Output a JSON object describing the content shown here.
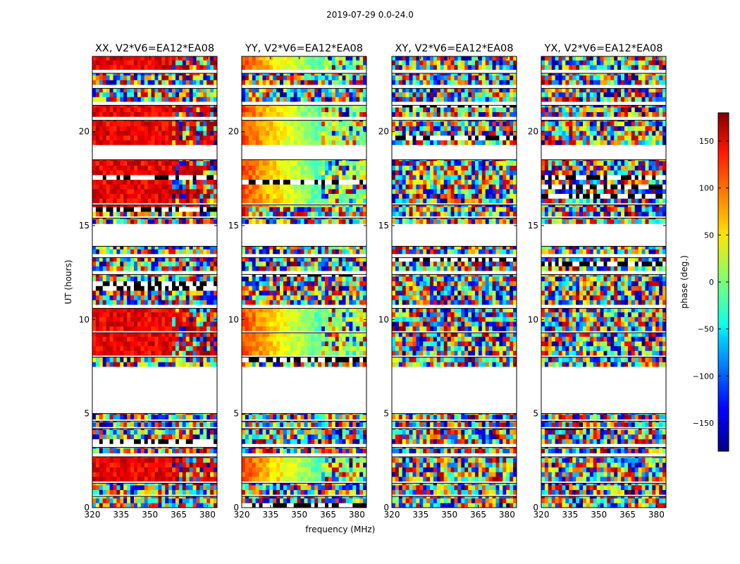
{
  "figure": {
    "suptitle": "2019-07-29 0.0-24.0"
  },
  "colors": {
    "colormap": "jet",
    "blank": "#ffffff",
    "flag": "#000000"
  },
  "chart_data": [
    {
      "type": "heatmap",
      "title": "XX, V2*V6=EA12*EA08",
      "xlabel": "",
      "ylabel": "UT (hours)",
      "xlim": [
        320,
        385
      ],
      "ylim": [
        0,
        24
      ],
      "xticks": [
        320,
        335,
        350,
        365,
        380
      ],
      "yticks": [
        0,
        5,
        10,
        15,
        20
      ],
      "phase_pattern": "coherent-warm",
      "base_phase_deg": 140,
      "coherent_until_mhz": 361
    },
    {
      "type": "heatmap",
      "title": "YY, V2*V6=EA12*EA08",
      "xlabel": "frequency (MHz)",
      "ylabel": "",
      "xlim": [
        320,
        385
      ],
      "ylim": [
        0,
        24
      ],
      "xticks": [
        320,
        335,
        350,
        365,
        380
      ],
      "yticks": [
        0,
        5,
        10,
        15,
        20
      ],
      "phase_pattern": "coherent-gradient",
      "base_phase_deg": 110,
      "end_phase_deg": -20,
      "coherent_until_mhz": 361
    },
    {
      "type": "heatmap",
      "title": "XY, V2*V6=EA12*EA08",
      "xlabel": "",
      "ylabel": "",
      "xlim": [
        320,
        385
      ],
      "ylim": [
        0,
        24
      ],
      "xticks": [
        320,
        335,
        350,
        365,
        380
      ],
      "yticks": [
        0,
        5,
        10,
        15,
        20
      ],
      "phase_pattern": "noise"
    },
    {
      "type": "heatmap",
      "title": "YX, V2*V6=EA12*EA08",
      "xlabel": "",
      "ylabel": "",
      "xlim": [
        320,
        385
      ],
      "ylim": [
        0,
        24
      ],
      "xticks": [
        320,
        335,
        350,
        365,
        380
      ],
      "yticks": [
        0,
        5,
        10,
        15,
        20
      ],
      "phase_pattern": "noise"
    }
  ],
  "data_segments_hours": [
    [
      0.0,
      0.6
    ],
    [
      0.7,
      1.3
    ],
    [
      1.4,
      2.7
    ],
    [
      2.9,
      3.2
    ],
    [
      3.4,
      4.2
    ],
    [
      4.3,
      4.6
    ],
    [
      4.7,
      5.0
    ],
    [
      7.5,
      8.0
    ],
    [
      8.1,
      9.3
    ],
    [
      9.4,
      10.6
    ],
    [
      10.8,
      12.4
    ],
    [
      12.6,
      13.3
    ],
    [
      13.5,
      13.9
    ],
    [
      15.1,
      15.4
    ],
    [
      15.5,
      16.1
    ],
    [
      16.2,
      18.5
    ],
    [
      19.3,
      20.6
    ],
    [
      20.8,
      21.4
    ],
    [
      21.6,
      22.3
    ],
    [
      22.5,
      23.1
    ],
    [
      23.3,
      24.0
    ]
  ],
  "colorbar": {
    "label": "phase (deg.)",
    "range": [
      -180,
      180
    ],
    "ticks": [
      150,
      100,
      50,
      0,
      -50,
      -100,
      -150
    ],
    "tick_labels": [
      "150",
      "100",
      "50",
      "0",
      "−50",
      "−100",
      "−150"
    ]
  }
}
